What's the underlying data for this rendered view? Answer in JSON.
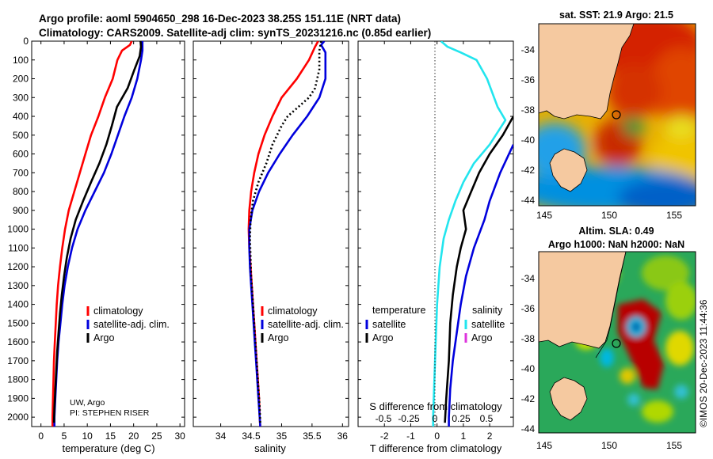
{
  "figure": {
    "title_line1": "Argo profile: aoml 5904650_298 16-Dec-2023 38.25S 151.11E (NRT data)",
    "title_line2": "Climatology: CARS2009. Satellite-adj clim: synTS_20231216.nc (0.85d earlier)",
    "credit": "UW, Argo",
    "pi": "PI: STEPHEN RISER",
    "timestamp": "©IMOS 20-Dec-2023 11:44:36"
  },
  "colors": {
    "climatology": "#ff0000",
    "satellite": "#0000dd",
    "argo": "#000000",
    "sat_salinity": "#22e5ee",
    "argo_salinity": "#dd33dd",
    "land": "#f5c9a0"
  },
  "legend_panel1": [
    "climatology",
    "satellite-adj. clim.",
    "Argo"
  ],
  "legend_panel2": [
    "climatology",
    "satellite-adj. clim.",
    "Argo"
  ],
  "legend_panel3": {
    "left_title": "temperature",
    "left_items": [
      "satellite",
      "Argo"
    ],
    "right_title": "salinity",
    "right_items": [
      "satellite",
      "Argo"
    ]
  },
  "chart_data": [
    {
      "type": "line",
      "title": "",
      "xlabel": "temperature (deg C)",
      "ylabel": "",
      "xlim": [
        -2,
        31
      ],
      "ylim": [
        0,
        2050
      ],
      "xticks": [
        0,
        5,
        10,
        15,
        20,
        25,
        30
      ],
      "yticks": [
        0,
        100,
        200,
        300,
        400,
        500,
        600,
        700,
        800,
        900,
        1000,
        1100,
        1200,
        1300,
        1400,
        1500,
        1600,
        1700,
        1800,
        1900,
        2000
      ],
      "series": [
        {
          "name": "climatology",
          "color": "#ff0000",
          "points": [
            [
              19.6,
              0
            ],
            [
              19.2,
              20
            ],
            [
              17.5,
              50
            ],
            [
              16.5,
              100
            ],
            [
              15.5,
              200
            ],
            [
              13.8,
              300
            ],
            [
              12.4,
              400
            ],
            [
              10.8,
              500
            ],
            [
              9.6,
              600
            ],
            [
              8.4,
              700
            ],
            [
              7.2,
              800
            ],
            [
              6.0,
              900
            ],
            [
              5.2,
              1000
            ],
            [
              4.6,
              1100
            ],
            [
              4.1,
              1200
            ],
            [
              3.7,
              1300
            ],
            [
              3.4,
              1400
            ],
            [
              3.2,
              1500
            ],
            [
              3.0,
              1600
            ],
            [
              2.8,
              1700
            ],
            [
              2.7,
              1800
            ],
            [
              2.6,
              1900
            ],
            [
              2.5,
              2000
            ],
            [
              2.5,
              2050
            ]
          ]
        },
        {
          "name": "satellite-adj. clim.",
          "color": "#0000dd",
          "points": [
            [
              21.9,
              0
            ],
            [
              21.9,
              50
            ],
            [
              21.6,
              100
            ],
            [
              20.8,
              200
            ],
            [
              19.6,
              300
            ],
            [
              18.0,
              400
            ],
            [
              16.6,
              500
            ],
            [
              15.2,
              600
            ],
            [
              13.6,
              700
            ],
            [
              11.6,
              800
            ],
            [
              9.6,
              900
            ],
            [
              7.9,
              1000
            ],
            [
              6.7,
              1100
            ],
            [
              5.8,
              1200
            ],
            [
              5.1,
              1300
            ],
            [
              4.6,
              1400
            ],
            [
              4.2,
              1500
            ],
            [
              3.8,
              1600
            ],
            [
              3.5,
              1700
            ],
            [
              3.3,
              1800
            ],
            [
              3.1,
              1900
            ],
            [
              2.9,
              2000
            ],
            [
              2.9,
              2050
            ]
          ]
        },
        {
          "name": "Argo",
          "color": "#000000",
          "points": [
            [
              21.5,
              0
            ],
            [
              21.6,
              30
            ],
            [
              21.3,
              80
            ],
            [
              20.2,
              150
            ],
            [
              18.7,
              250
            ],
            [
              16.4,
              350
            ],
            [
              15.3,
              450
            ],
            [
              14.1,
              550
            ],
            [
              12.6,
              650
            ],
            [
              10.8,
              750
            ],
            [
              9.1,
              850
            ],
            [
              7.5,
              950
            ],
            [
              6.4,
              1050
            ],
            [
              5.6,
              1150
            ],
            [
              5.0,
              1250
            ],
            [
              4.5,
              1350
            ],
            [
              4.1,
              1450
            ],
            [
              3.8,
              1550
            ],
            [
              3.5,
              1650
            ],
            [
              3.3,
              1750
            ],
            [
              3.1,
              1850
            ],
            [
              2.9,
              1950
            ],
            [
              2.8,
              2030
            ]
          ]
        }
      ]
    },
    {
      "type": "line",
      "xlabel": "salinity",
      "xlim": [
        33.55,
        36.1
      ],
      "ylim": [
        0,
        2050
      ],
      "xticks": [
        34,
        34.5,
        35,
        35.5,
        36
      ],
      "series": [
        {
          "name": "climatology",
          "color": "#ff0000",
          "points": [
            [
              35.6,
              0
            ],
            [
              35.55,
              30
            ],
            [
              35.45,
              100
            ],
            [
              35.25,
              200
            ],
            [
              35.0,
              300
            ],
            [
              34.85,
              400
            ],
            [
              34.72,
              500
            ],
            [
              34.62,
              600
            ],
            [
              34.55,
              700
            ],
            [
              34.5,
              800
            ],
            [
              34.47,
              900
            ],
            [
              34.46,
              1000
            ],
            [
              34.47,
              1100
            ],
            [
              34.49,
              1200
            ],
            [
              34.51,
              1300
            ],
            [
              34.53,
              1400
            ],
            [
              34.55,
              1500
            ],
            [
              34.57,
              1600
            ],
            [
              34.59,
              1700
            ],
            [
              34.61,
              1800
            ],
            [
              34.63,
              1900
            ],
            [
              34.64,
              2000
            ],
            [
              34.65,
              2050
            ]
          ]
        },
        {
          "name": "satellite-adj. clim.",
          "color": "#0000dd",
          "points": [
            [
              35.7,
              0
            ],
            [
              35.65,
              20
            ],
            [
              35.72,
              60
            ],
            [
              35.72,
              200
            ],
            [
              35.62,
              300
            ],
            [
              35.42,
              400
            ],
            [
              35.18,
              500
            ],
            [
              34.97,
              600
            ],
            [
              34.78,
              700
            ],
            [
              34.63,
              800
            ],
            [
              34.52,
              900
            ],
            [
              34.47,
              1000
            ],
            [
              34.47,
              1100
            ],
            [
              34.48,
              1200
            ],
            [
              34.5,
              1300
            ],
            [
              34.52,
              1400
            ],
            [
              34.54,
              1500
            ],
            [
              34.56,
              1600
            ],
            [
              34.58,
              1700
            ],
            [
              34.6,
              1800
            ],
            [
              34.62,
              1900
            ],
            [
              34.64,
              2000
            ],
            [
              34.65,
              2050
            ]
          ]
        },
        {
          "name": "Argo",
          "color": "#000000",
          "points": [
            [
              35.65,
              0
            ],
            [
              35.62,
              50
            ],
            [
              35.62,
              150
            ],
            [
              35.55,
              250
            ],
            [
              35.45,
              300
            ],
            [
              35.1,
              400
            ],
            [
              35.0,
              450
            ],
            [
              34.85,
              550
            ],
            [
              34.75,
              650
            ],
            [
              34.62,
              750
            ],
            [
              34.53,
              850
            ],
            [
              34.49,
              950
            ],
            [
              34.48,
              1050
            ],
            [
              34.49,
              1150
            ],
            [
              34.5,
              1250
            ],
            [
              34.52,
              1350
            ],
            [
              34.54,
              1450
            ],
            [
              34.56,
              1550
            ],
            [
              34.58,
              1650
            ],
            [
              34.6,
              1750
            ],
            [
              34.62,
              1850
            ],
            [
              34.64,
              1950
            ],
            [
              34.65,
              2030
            ]
          ]
        }
      ]
    },
    {
      "type": "line",
      "xlabel": "T difference from climatology",
      "secondary_xlabel": "S difference from climatology",
      "xlim": [
        -3,
        2.9
      ],
      "ylim": [
        0,
        2050
      ],
      "xticks": [
        -2,
        -1,
        0,
        1,
        2
      ],
      "secondary_xticks": [
        "-0.5",
        "-0.25",
        "0",
        "0.25",
        "0.5"
      ],
      "series": [
        {
          "name": "T satellite",
          "color": "#0000dd",
          "points": [
            [
              2.9,
              550
            ],
            [
              2.4,
              700
            ],
            [
              2.0,
              850
            ],
            [
              1.8,
              950
            ],
            [
              1.4,
              1100
            ],
            [
              1.1,
              1250
            ],
            [
              0.9,
              1400
            ],
            [
              0.75,
              1550
            ],
            [
              0.6,
              1700
            ],
            [
              0.5,
              1850
            ],
            [
              0.45,
              2000
            ],
            [
              0.45,
              2050
            ]
          ]
        },
        {
          "name": "T Argo",
          "color": "#000000",
          "points": [
            [
              2.9,
              400
            ],
            [
              2.5,
              500
            ],
            [
              2.0,
              600
            ],
            [
              1.6,
              700
            ],
            [
              1.3,
              800
            ],
            [
              1.0,
              900
            ],
            [
              1.1,
              1000
            ],
            [
              0.9,
              1100
            ],
            [
              0.75,
              1200
            ],
            [
              0.6,
              1350
            ],
            [
              0.5,
              1500
            ],
            [
              0.45,
              1700
            ],
            [
              0.35,
              1900
            ],
            [
              0.3,
              2030
            ]
          ]
        },
        {
          "name": "S satellite",
          "color": "#22e5ee",
          "points": [
            [
              0.15,
              0
            ],
            [
              0.4,
              30
            ],
            [
              0.9,
              60
            ],
            [
              1.5,
              100
            ],
            [
              1.9,
              200
            ],
            [
              2.3,
              350
            ],
            [
              2.6,
              420
            ],
            [
              2.0,
              550
            ],
            [
              1.4,
              650
            ],
            [
              1.0,
              750
            ],
            [
              0.7,
              850
            ],
            [
              0.45,
              950
            ],
            [
              0.25,
              1050
            ],
            [
              0.1,
              1200
            ],
            [
              0.0,
              1400
            ],
            [
              -0.05,
              1600
            ],
            [
              -0.1,
              1800
            ],
            [
              -0.15,
              2000
            ],
            [
              -0.15,
              2050
            ]
          ]
        }
      ]
    }
  ],
  "maps": {
    "map1": {
      "title": "sat. SST: 21.9 Argo: 21.5",
      "yticks": [
        "-34",
        "-36",
        "-38",
        "-40",
        "-42",
        "-44"
      ],
      "xticks": [
        "145",
        "150",
        "155"
      ]
    },
    "map2": {
      "title_line1": "Altim. SLA: 0.49",
      "title_line2": "Argo h1000: NaN h2000: NaN",
      "yticks": [
        "-34",
        "-36",
        "-38",
        "-40",
        "-42",
        "-44"
      ],
      "xticks": [
        "145",
        "150",
        "155"
      ]
    }
  }
}
